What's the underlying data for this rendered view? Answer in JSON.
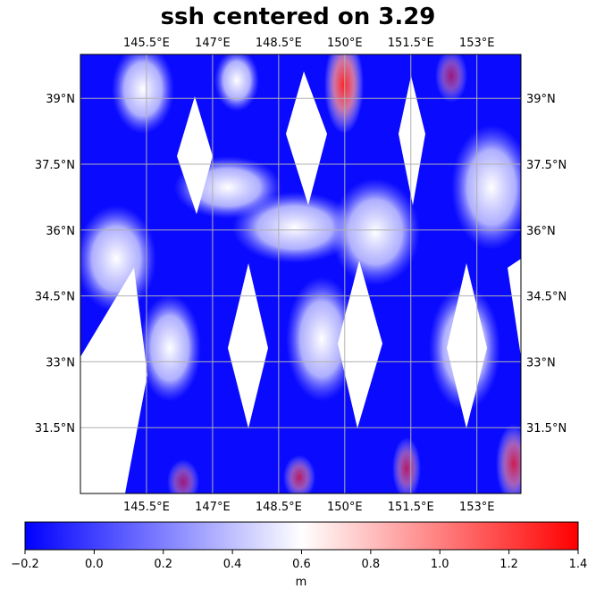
{
  "title": "ssh centered on 3.29",
  "chart_data": {
    "type": "heatmap",
    "title": "ssh centered on 3.29",
    "lon_ticks": [
      "145.5°E",
      "147°E",
      "148.5°E",
      "150°E",
      "151.5°E",
      "153°E"
    ],
    "lon_values": [
      145.5,
      147,
      148.5,
      150,
      151.5,
      153
    ],
    "lat_ticks": [
      "39°N",
      "37.5°N",
      "36°N",
      "34.5°N",
      "33°N",
      "31.5°N"
    ],
    "lat_values": [
      39,
      37.5,
      36,
      34.5,
      33,
      31.5
    ],
    "lon_range": [
      144,
      154
    ],
    "lat_range": [
      30,
      40
    ],
    "grid": true,
    "colorbar": {
      "label": "m",
      "range": [
        -0.2,
        1.4
      ],
      "ticks": [
        "−0.2",
        "0.0",
        "0.2",
        "0.4",
        "0.6",
        "0.8",
        "1.0",
        "1.2",
        "1.4"
      ],
      "tick_values": [
        -0.2,
        0,
        0.2,
        0.4,
        0.6,
        0.8,
        1.0,
        1.2,
        1.4
      ],
      "colormap": [
        "#0000ff",
        "#ffffff",
        "#ff0000"
      ]
    }
  }
}
